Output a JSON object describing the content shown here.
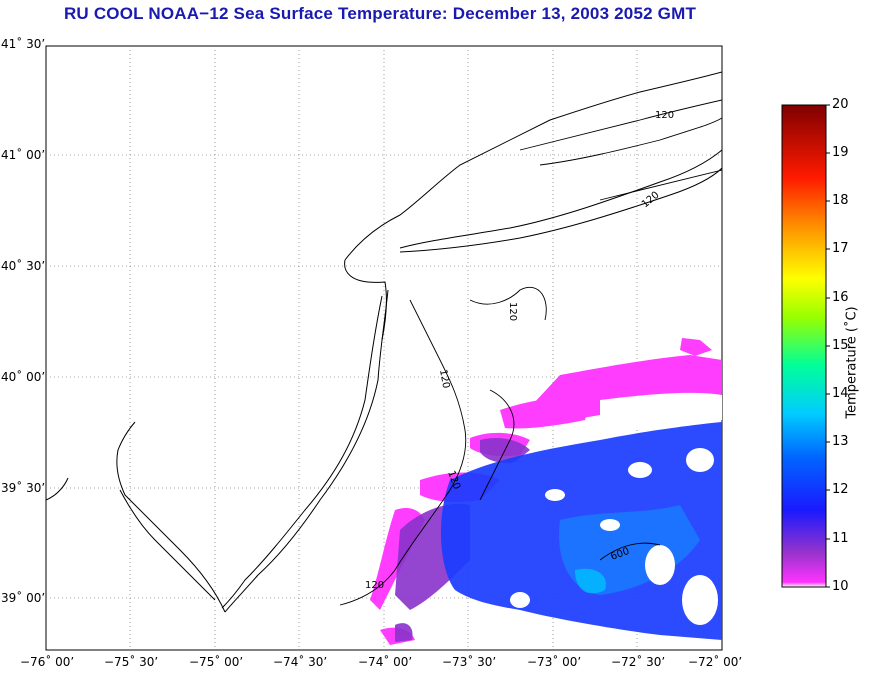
{
  "title": "RU COOL  NOAA−12  Sea Surface Temperature:  December 13, 2003 2052 GMT",
  "y_labels": [
    "41˚ 30’",
    "41˚ 00’",
    "40˚ 30’",
    "40˚ 00’",
    "39˚ 30’",
    "39˚ 00’"
  ],
  "x_labels": [
    "−76˚ 00’",
    "−75˚ 30’",
    "−75˚ 00’",
    "−74˚ 30’",
    "−74˚ 00’",
    "−73˚ 30’",
    "−73˚ 00’",
    "−72˚ 30’",
    "−72˚ 00’"
  ],
  "colorbar": {
    "label": "Temperature (˚C)",
    "ticks": [
      "20",
      "19",
      "18",
      "17",
      "16",
      "15",
      "14",
      "13",
      "12",
      "11",
      "10"
    ],
    "min": 10,
    "max": 20,
    "colors": [
      "#ff33ff",
      "#9933cc",
      "#0033ff",
      "#00ccff",
      "#00ff99",
      "#ffff00",
      "#ff9900",
      "#ff0000",
      "#800000"
    ]
  },
  "contour_labels": [
    "120",
    "120",
    "120",
    "120",
    "120",
    "120",
    "600"
  ]
}
